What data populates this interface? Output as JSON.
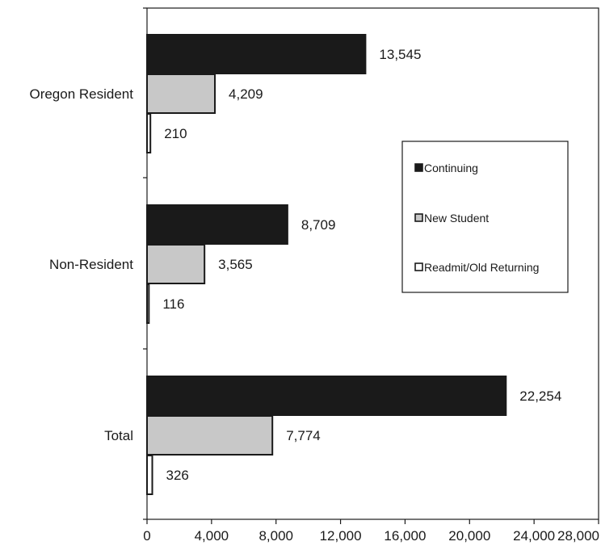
{
  "chart_data": {
    "type": "bar",
    "orientation": "horizontal",
    "categories": [
      "Oregon Resident",
      "Non-Resident",
      "Total"
    ],
    "series": [
      {
        "name": "Continuing",
        "values": [
          13545,
          8709,
          22254
        ],
        "color": "#1a1a1a"
      },
      {
        "name": "New Student",
        "values": [
          4209,
          3565,
          7774
        ],
        "color": "#c8c8c8"
      },
      {
        "name": "Readmit/Old Returning",
        "values": [
          210,
          116,
          326
        ],
        "color": "#ffffff"
      }
    ],
    "value_labels": [
      [
        "13,545",
        "8,709",
        "22,254"
      ],
      [
        "4,209",
        "3,565",
        "7,774"
      ],
      [
        "210",
        "116",
        "326"
      ]
    ],
    "x_ticks": [
      "0",
      "4,000",
      "8,000",
      "12,000",
      "16,000",
      "20,000",
      "24,000",
      "28,000"
    ],
    "xlim": [
      0,
      28000
    ],
    "grid": false,
    "legend_position": "right"
  }
}
